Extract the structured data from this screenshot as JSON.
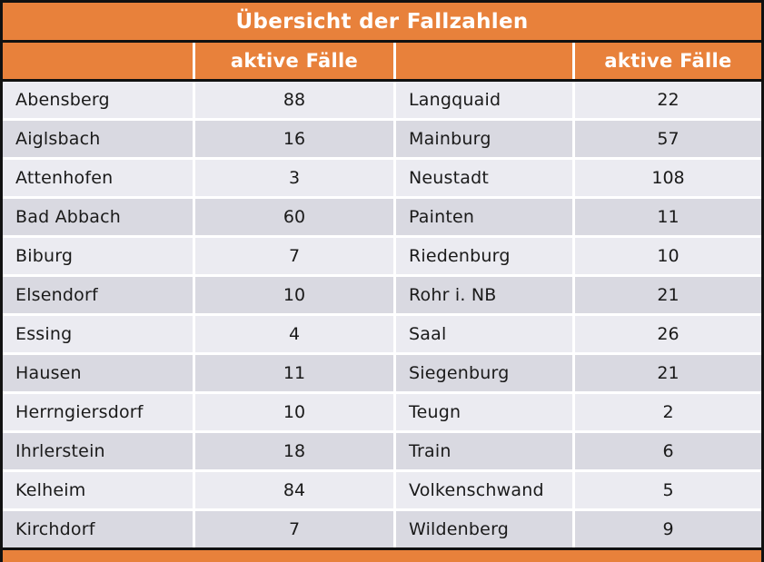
{
  "title": "Übersicht der Fallzahlen",
  "header": {
    "labels": [
      "",
      "aktive Fälle",
      "",
      "aktive Fälle"
    ]
  },
  "chart_data": {
    "type": "table",
    "title": "Übersicht der Fallzahlen",
    "columns": [
      "",
      "aktive Fälle",
      "",
      "aktive Fälle"
    ],
    "rows": [
      [
        "Abensberg",
        88,
        "Langquaid",
        22
      ],
      [
        "Aiglsbach",
        16,
        "Mainburg",
        57
      ],
      [
        "Attenhofen",
        3,
        "Neustadt",
        108
      ],
      [
        "Bad Abbach",
        60,
        "Painten",
        11
      ],
      [
        "Biburg",
        7,
        "Riedenburg",
        10
      ],
      [
        "Elsendorf",
        10,
        "Rohr i. NB",
        21
      ],
      [
        "Essing",
        4,
        "Saal",
        26
      ],
      [
        "Hausen",
        11,
        "Siegenburg",
        21
      ],
      [
        "Herrngiersdorf",
        10,
        "Teugn",
        2
      ],
      [
        "Ihrlerstein",
        18,
        "Train",
        6
      ],
      [
        "Kelheim",
        84,
        "Volkenschwand",
        5
      ],
      [
        "Kirchdorf",
        7,
        "Wildenberg",
        9
      ]
    ],
    "layout_hints": {
      "row_striping": [
        "light",
        "dark"
      ],
      "value_columns_centered": true,
      "header_background": "#E8813B"
    }
  },
  "colors": {
    "orange": "#E8813B",
    "row_light": "#EBEBF1",
    "row_dark": "#D9D9E1",
    "border_black": "#111111",
    "separator_white": "#FFFFFF",
    "header_text": "#FFFFFF",
    "body_text": "#1A1A1A"
  }
}
